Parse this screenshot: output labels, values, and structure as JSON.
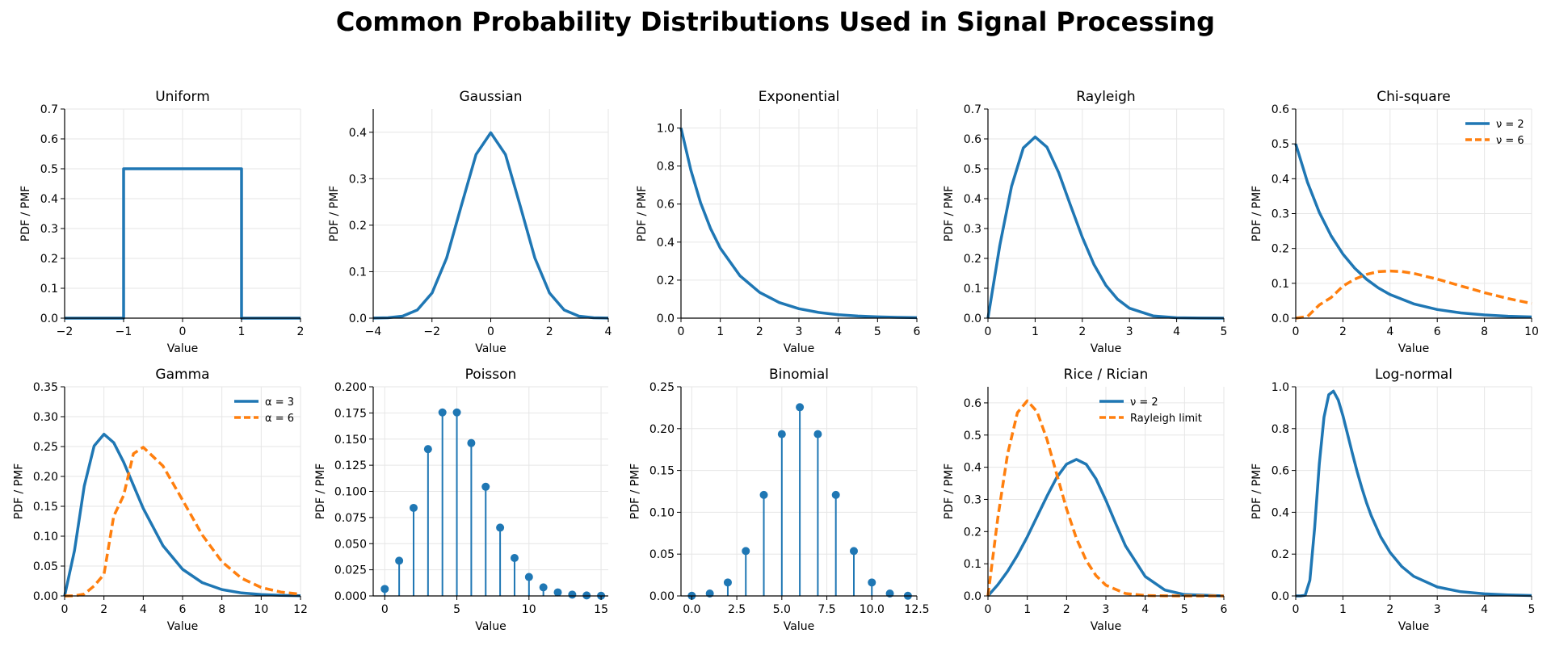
{
  "figure": {
    "title": "Common Probability Distributions Used in Signal Processing"
  },
  "colors": {
    "blue": "#1f77b4",
    "orange": "#ff7f0e",
    "grid": "#e6e6e6"
  },
  "chart_data": [
    {
      "id": "uniform",
      "type": "line",
      "title": "Uniform",
      "xlabel": "Value",
      "ylabel": "PDF / PMF",
      "xlim": [
        -2,
        2
      ],
      "ylim": [
        0,
        0.7
      ],
      "xticks": [
        -2,
        -1,
        0,
        1,
        2
      ],
      "xtick_labels": [
        "−2",
        "−1",
        "0",
        "1",
        "2"
      ],
      "yticks": [
        0,
        0.1,
        0.2,
        0.3,
        0.4,
        0.5,
        0.6,
        0.7
      ],
      "ytick_labels": [
        "0.0",
        "0.1",
        "0.2",
        "0.3",
        "0.4",
        "0.5",
        "0.6",
        "0.7"
      ],
      "grid": true,
      "legend": null,
      "series": [
        {
          "style": "solid",
          "color": "#1f77b4",
          "x": [
            -2,
            -1,
            -1,
            1,
            1,
            2
          ],
          "y": [
            0,
            0,
            0.5,
            0.5,
            0,
            0
          ]
        }
      ]
    },
    {
      "id": "gaussian",
      "type": "line",
      "title": "Gaussian",
      "xlabel": "Value",
      "ylabel": "PDF / PMF",
      "xlim": [
        -4,
        4
      ],
      "ylim": [
        0,
        0.45
      ],
      "xticks": [
        -4,
        -2,
        0,
        2,
        4
      ],
      "xtick_labels": [
        "−4",
        "−2",
        "0",
        "2",
        "4"
      ],
      "yticks": [
        0,
        0.1,
        0.2,
        0.3,
        0.4
      ],
      "ytick_labels": [
        "0.0",
        "0.1",
        "0.2",
        "0.3",
        "0.4"
      ],
      "grid": true,
      "legend": null,
      "series": [
        {
          "style": "solid",
          "color": "#1f77b4",
          "x": [
            -4,
            -3.5,
            -3,
            -2.5,
            -2,
            -1.5,
            -1,
            -0.5,
            0,
            0.5,
            1,
            1.5,
            2,
            2.5,
            3,
            3.5,
            4
          ],
          "y": [
            0.0001,
            0.0009,
            0.0044,
            0.0175,
            0.054,
            0.1295,
            0.242,
            0.3521,
            0.3989,
            0.3521,
            0.242,
            0.1295,
            0.054,
            0.0175,
            0.0044,
            0.0009,
            0.0001
          ]
        }
      ]
    },
    {
      "id": "exponential",
      "type": "line",
      "title": "Exponential",
      "xlabel": "Value",
      "ylabel": "PDF / PMF",
      "xlim": [
        0,
        6
      ],
      "ylim": [
        0,
        1.1
      ],
      "xticks": [
        0,
        1,
        2,
        3,
        4,
        5,
        6
      ],
      "xtick_labels": [
        "0",
        "1",
        "2",
        "3",
        "4",
        "5",
        "6"
      ],
      "yticks": [
        0,
        0.2,
        0.4,
        0.6,
        0.8,
        1.0
      ],
      "ytick_labels": [
        "0.0",
        "0.2",
        "0.4",
        "0.6",
        "0.8",
        "1.0"
      ],
      "grid": true,
      "legend": null,
      "series": [
        {
          "style": "solid",
          "color": "#1f77b4",
          "x": [
            0,
            0.25,
            0.5,
            0.75,
            1,
            1.5,
            2,
            2.5,
            3,
            3.5,
            4,
            4.5,
            5,
            5.5,
            6
          ],
          "y": [
            1.0,
            0.7788,
            0.6065,
            0.4724,
            0.3679,
            0.2231,
            0.1353,
            0.0821,
            0.0498,
            0.0302,
            0.0183,
            0.0111,
            0.0067,
            0.0041,
            0.0025
          ]
        }
      ]
    },
    {
      "id": "rayleigh",
      "type": "line",
      "title": "Rayleigh",
      "xlabel": "Value",
      "ylabel": "PDF / PMF",
      "xlim": [
        0,
        5
      ],
      "ylim": [
        0,
        0.7
      ],
      "xticks": [
        0,
        1,
        2,
        3,
        4,
        5
      ],
      "xtick_labels": [
        "0",
        "1",
        "2",
        "3",
        "4",
        "5"
      ],
      "yticks": [
        0,
        0.1,
        0.2,
        0.3,
        0.4,
        0.5,
        0.6,
        0.7
      ],
      "ytick_labels": [
        "0.0",
        "0.1",
        "0.2",
        "0.3",
        "0.4",
        "0.5",
        "0.6",
        "0.7"
      ],
      "grid": true,
      "legend": null,
      "series": [
        {
          "style": "solid",
          "color": "#1f77b4",
          "x": [
            0,
            0.25,
            0.5,
            0.75,
            1,
            1.25,
            1.5,
            1.75,
            2,
            2.25,
            2.5,
            2.75,
            3,
            3.5,
            4,
            4.5,
            5
          ],
          "y": [
            0,
            0.2424,
            0.4412,
            0.5698,
            0.6065,
            0.5725,
            0.487,
            0.3777,
            0.2707,
            0.1787,
            0.1098,
            0.0629,
            0.0333,
            0.0076,
            0.0013,
            0.0002,
            0
          ]
        }
      ]
    },
    {
      "id": "chi-square",
      "type": "line",
      "title": "Chi-square",
      "xlabel": "Value",
      "ylabel": "PDF / PMF",
      "xlim": [
        0,
        10
      ],
      "ylim": [
        0,
        0.6
      ],
      "xticks": [
        0,
        2,
        4,
        6,
        8,
        10
      ],
      "xtick_labels": [
        "0",
        "2",
        "4",
        "6",
        "8",
        "10"
      ],
      "yticks": [
        0,
        0.1,
        0.2,
        0.3,
        0.4,
        0.5,
        0.6
      ],
      "ytick_labels": [
        "0.0",
        "0.1",
        "0.2",
        "0.3",
        "0.4",
        "0.5",
        "0.6"
      ],
      "grid": true,
      "legend": "top-right",
      "series": [
        {
          "name": "ν = 2",
          "style": "solid",
          "color": "#1f77b4",
          "x": [
            0,
            0.5,
            1,
            1.5,
            2,
            2.5,
            3,
            3.5,
            4,
            5,
            6,
            7,
            8,
            9,
            10
          ],
          "y": [
            0.5,
            0.3894,
            0.3033,
            0.2362,
            0.1839,
            0.1433,
            0.1116,
            0.0869,
            0.0677,
            0.041,
            0.0249,
            0.0151,
            0.0092,
            0.0056,
            0.0034
          ]
        },
        {
          "name": "ν = 6",
          "style": "dashed",
          "color": "#ff7f0e",
          "x": [
            0,
            0.5,
            1,
            1.5,
            2,
            2.5,
            3,
            3.5,
            4,
            4.5,
            5,
            6,
            7,
            8,
            9,
            10
          ],
          "y": [
            0,
            0.0049,
            0.0379,
            0.059,
            0.092,
            0.112,
            0.1255,
            0.1334,
            0.1353,
            0.1336,
            0.1283,
            0.112,
            0.0925,
            0.0733,
            0.0562,
            0.0421
          ]
        }
      ]
    },
    {
      "id": "gamma",
      "type": "line",
      "title": "Gamma",
      "xlabel": "Value",
      "ylabel": "PDF / PMF",
      "xlim": [
        0,
        12
      ],
      "ylim": [
        0,
        0.35
      ],
      "xticks": [
        0,
        2,
        4,
        6,
        8,
        10,
        12
      ],
      "xtick_labels": [
        "0",
        "2",
        "4",
        "6",
        "8",
        "10",
        "12"
      ],
      "yticks": [
        0,
        0.05,
        0.1,
        0.15,
        0.2,
        0.25,
        0.3,
        0.35
      ],
      "ytick_labels": [
        "0.00",
        "0.05",
        "0.10",
        "0.15",
        "0.20",
        "0.25",
        "0.30",
        "0.35"
      ],
      "grid": true,
      "legend": "top-right",
      "series": [
        {
          "name": "α = 3",
          "style": "solid",
          "color": "#1f77b4",
          "x": [
            0,
            0.5,
            1,
            1.5,
            2,
            2.5,
            3,
            4,
            5,
            6,
            7,
            8,
            9,
            10,
            11,
            12
          ],
          "y": [
            0,
            0.0758,
            0.1839,
            0.251,
            0.2707,
            0.2565,
            0.224,
            0.1465,
            0.0842,
            0.0446,
            0.0223,
            0.0107,
            0.005,
            0.0023,
            0.001,
            0.0004
          ]
        },
        {
          "name": "α = 6",
          "style": "dashed",
          "color": "#ff7f0e",
          "x": [
            0,
            0.5,
            1,
            1.5,
            2,
            2.5,
            3,
            3.5,
            4,
            5,
            6,
            7,
            8,
            9,
            10,
            11,
            12
          ],
          "y": [
            0,
            0.0002,
            0.0031,
            0.0168,
            0.0361,
            0.1336,
            0.168,
            0.2381,
            0.2488,
            0.2175,
            0.1606,
            0.1021,
            0.0573,
            0.0296,
            0.0142,
            0.0065,
            0.0028
          ]
        }
      ]
    },
    {
      "id": "poisson",
      "type": "stem",
      "title": "Poisson",
      "xlabel": "Value",
      "ylabel": "PDF / PMF",
      "xlim": [
        -0.8,
        15.5
      ],
      "ylim": [
        0,
        0.2
      ],
      "xticks": [
        0,
        5,
        10,
        15
      ],
      "xtick_labels": [
        "0",
        "5",
        "10",
        "15"
      ],
      "yticks": [
        0,
        0.025,
        0.05,
        0.075,
        0.1,
        0.125,
        0.15,
        0.175,
        0.2
      ],
      "ytick_labels": [
        "0.000",
        "0.025",
        "0.050",
        "0.075",
        "0.100",
        "0.125",
        "0.150",
        "0.175",
        "0.200"
      ],
      "grid": true,
      "legend": null,
      "series": [
        {
          "style": "stem",
          "color": "#1f77b4",
          "x": [
            0,
            1,
            2,
            3,
            4,
            5,
            6,
            7,
            8,
            9,
            10,
            11,
            12,
            13,
            14,
            15
          ],
          "y": [
            0.0067,
            0.0337,
            0.0842,
            0.1404,
            0.1755,
            0.1755,
            0.1462,
            0.1044,
            0.0653,
            0.0363,
            0.0181,
            0.0082,
            0.0034,
            0.0013,
            0.0005,
            0.0002
          ]
        }
      ]
    },
    {
      "id": "binomial",
      "type": "stem",
      "title": "Binomial",
      "xlabel": "Value",
      "ylabel": "PDF / PMF",
      "xlim": [
        -0.6,
        12.5
      ],
      "ylim": [
        0,
        0.25
      ],
      "xticks": [
        0,
        2.5,
        5,
        7.5,
        10,
        12.5
      ],
      "xtick_labels": [
        "0.0",
        "2.5",
        "5.0",
        "7.5",
        "10.0",
        "12.5"
      ],
      "yticks": [
        0,
        0.05,
        0.1,
        0.15,
        0.2,
        0.25
      ],
      "ytick_labels": [
        "0.00",
        "0.05",
        "0.10",
        "0.15",
        "0.20",
        "0.25"
      ],
      "grid": true,
      "legend": null,
      "series": [
        {
          "style": "stem",
          "color": "#1f77b4",
          "x": [
            0,
            1,
            2,
            3,
            4,
            5,
            6,
            7,
            8,
            9,
            10,
            11,
            12
          ],
          "y": [
            0.0002,
            0.0029,
            0.0161,
            0.0537,
            0.1208,
            0.1934,
            0.2256,
            0.1934,
            0.1208,
            0.0537,
            0.0161,
            0.0029,
            0.0002
          ]
        }
      ]
    },
    {
      "id": "rice",
      "type": "line",
      "title": "Rice / Rician",
      "xlabel": "Value",
      "ylabel": "PDF / PMF",
      "xlim": [
        0,
        6
      ],
      "ylim": [
        0,
        0.65
      ],
      "xticks": [
        0,
        1,
        2,
        3,
        4,
        5,
        6
      ],
      "xtick_labels": [
        "0",
        "1",
        "2",
        "3",
        "4",
        "5",
        "6"
      ],
      "yticks": [
        0,
        0.1,
        0.2,
        0.3,
        0.4,
        0.5,
        0.6
      ],
      "ytick_labels": [
        "0.0",
        "0.1",
        "0.2",
        "0.3",
        "0.4",
        "0.5",
        "0.6"
      ],
      "grid": true,
      "legend": "top-right",
      "series": [
        {
          "name": "ν = 2",
          "style": "solid",
          "color": "#1f77b4",
          "x": [
            0,
            0.25,
            0.5,
            0.75,
            1,
            1.25,
            1.5,
            1.75,
            2,
            2.25,
            2.5,
            2.75,
            3,
            3.25,
            3.5,
            4,
            4.5,
            5,
            6
          ],
          "y": [
            0,
            0.0349,
            0.0765,
            0.1264,
            0.1837,
            0.2468,
            0.3098,
            0.3683,
            0.4096,
            0.4244,
            0.4091,
            0.3637,
            0.2975,
            0.2245,
            0.1553,
            0.0604,
            0.0183,
            0.0042,
            0.0001
          ]
        },
        {
          "name": "Rayleigh limit",
          "style": "dashed",
          "color": "#ff7f0e",
          "x": [
            0,
            0.25,
            0.5,
            0.75,
            1,
            1.25,
            1.5,
            1.75,
            2,
            2.25,
            2.5,
            2.75,
            3,
            3.5,
            4,
            4.5,
            5,
            6
          ],
          "y": [
            0,
            0.2424,
            0.4412,
            0.5698,
            0.6065,
            0.5725,
            0.487,
            0.3777,
            0.2707,
            0.1787,
            0.1098,
            0.0629,
            0.0333,
            0.0076,
            0.0013,
            0.0002,
            0,
            0
          ]
        }
      ]
    },
    {
      "id": "log-normal",
      "type": "line",
      "title": "Log-normal",
      "xlabel": "Value",
      "ylabel": "PDF / PMF",
      "xlim": [
        0,
        5
      ],
      "ylim": [
        0,
        1.0
      ],
      "xticks": [
        0,
        1,
        2,
        3,
        4,
        5
      ],
      "xtick_labels": [
        "0",
        "1",
        "2",
        "3",
        "4",
        "5"
      ],
      "yticks": [
        0,
        0.2,
        0.4,
        0.6,
        0.8,
        1.0
      ],
      "ytick_labels": [
        "0.0",
        "0.2",
        "0.4",
        "0.6",
        "0.8",
        "1.0"
      ],
      "grid": true,
      "legend": null,
      "series": [
        {
          "style": "solid",
          "color": "#1f77b4",
          "x": [
            0,
            0.1,
            0.2,
            0.3,
            0.4,
            0.5,
            0.6,
            0.7,
            0.8,
            0.9,
            1.0,
            1.1,
            1.2,
            1.3,
            1.4,
            1.5,
            1.6,
            1.8,
            2.0,
            2.25,
            2.5,
            3.0,
            3.5,
            4.0,
            4.5,
            5.0
          ],
          "y": [
            0,
            0.0,
            0.003,
            0.075,
            0.325,
            0.632,
            0.855,
            0.962,
            0.979,
            0.937,
            0.862,
            0.773,
            0.682,
            0.596,
            0.517,
            0.446,
            0.384,
            0.283,
            0.208,
            0.14,
            0.094,
            0.043,
            0.02,
            0.01,
            0.005,
            0.002
          ]
        }
      ]
    }
  ]
}
